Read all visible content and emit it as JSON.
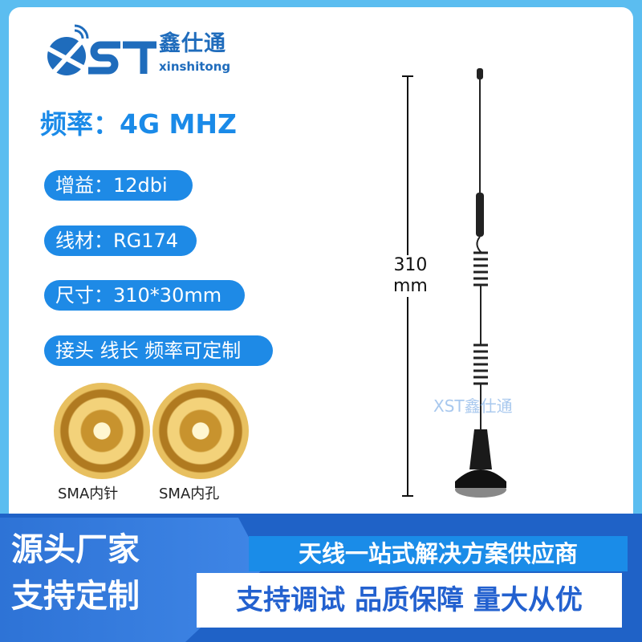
{
  "brand": {
    "name_cn": "鑫仕通",
    "name_en": "xinshitong",
    "logo_text": "XST",
    "color": "#1f6cbc"
  },
  "frequency": "频率：4G MHZ",
  "specs": [
    "增益：12dbi",
    "线材：RG174",
    "尺寸：310*30mm",
    "接头 线长 频率可定制"
  ],
  "connectors": [
    {
      "label": "SMA内针"
    },
    {
      "label": "SMA内孔"
    }
  ],
  "dimension": {
    "value": "310",
    "unit": "mm"
  },
  "watermark": "XST鑫仕通",
  "banner": {
    "left_line1": "源头厂家",
    "left_line2": "支持定制",
    "tagline": "天线一站式解决方案供应商",
    "features": "支持调试 品质保障 量大从优"
  },
  "colors": {
    "accent": "#1e8ae6",
    "background": "#5bbdf0",
    "footer": "#1f62c7"
  }
}
